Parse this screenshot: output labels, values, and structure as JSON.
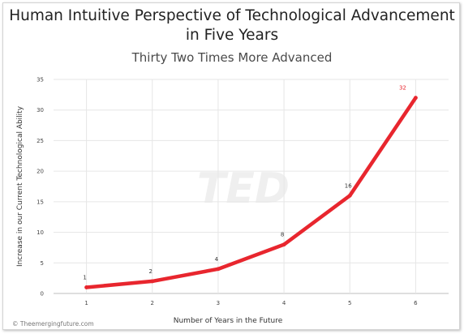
{
  "chart_data": {
    "type": "line",
    "title": "Human Intuitive Perspective of Technological Advancement in Five Years",
    "subtitle": "Thirty Two Times More Advanced",
    "xlabel": "Number of Years in the Future",
    "ylabel": "Increase in our Current Technological Ability",
    "x": [
      1,
      2,
      3,
      4,
      5,
      6
    ],
    "series": [
      {
        "values": [
          1,
          2,
          4,
          8,
          16,
          32
        ]
      }
    ],
    "data_labels": [
      "1",
      "2",
      "4",
      "8",
      "16",
      "32"
    ],
    "xlim": [
      0.5,
      6.5
    ],
    "ylim": [
      0,
      35
    ],
    "yticks": [
      0,
      5,
      10,
      15,
      20,
      25,
      30,
      35
    ],
    "xticks": [
      1,
      2,
      3,
      4,
      5,
      6
    ],
    "grid": true,
    "legend": "none",
    "line_color": "#e8262e",
    "last_label_color": "#e8262e"
  },
  "source_credit": "© Theemergingfuture.com"
}
